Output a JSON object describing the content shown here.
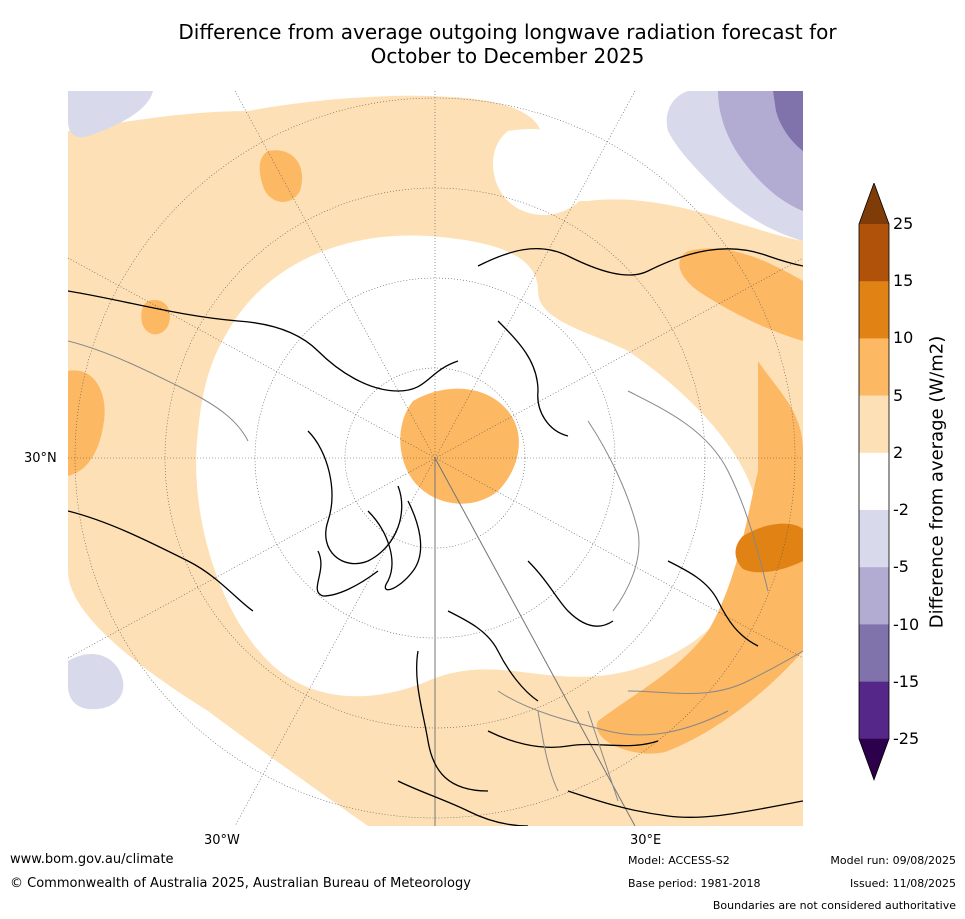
{
  "title_line1": "Difference from average outgoing longwave radiation forecast for",
  "title_line2": "October to December 2025",
  "map": {
    "latitude_label": "30°N",
    "longitude_labels": [
      "30°W",
      "30°E"
    ]
  },
  "colorbar": {
    "title": "Difference from average (W/m2)",
    "tick_labels": [
      "25",
      "15",
      "10",
      "5",
      "2",
      "-2",
      "-5",
      "-10",
      "-15",
      "-25"
    ],
    "bins": [
      {
        "range": "15 to 25",
        "color": "#b0520a"
      },
      {
        "range": "10 to 15",
        "color": "#e08214"
      },
      {
        "range": "5 to 10",
        "color": "#fdb863"
      },
      {
        "range": "2 to 5",
        "color": "#fee0b6"
      },
      {
        "range": "-2 to 2",
        "color": "#ffffff"
      },
      {
        "range": "-5 to -2",
        "color": "#d8daeb"
      },
      {
        "range": "-10 to -5",
        "color": "#b2abd2"
      },
      {
        "range": "-15 to -10",
        "color": "#8073ac"
      },
      {
        "range": "-25 to -15",
        "color": "#542788"
      }
    ],
    "overflow_high_color": "#7f3b08",
    "overflow_low_color": "#2d004b"
  },
  "footer": {
    "website": "www.bom.gov.au/climate",
    "copyright": "© Commonwealth of Australia 2025, Australian Bureau of Meteorology",
    "model": "Model: ACCESS-S2",
    "base_period": "Base period: 1981-2018",
    "model_run": "Model run: 09/08/2025",
    "issued": "Issued: 11/08/2025",
    "boundaries_note": "Boundaries are not considered authoritative"
  }
}
